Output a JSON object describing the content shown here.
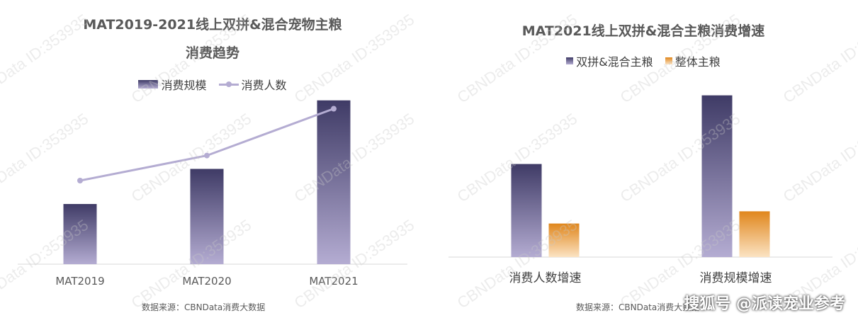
{
  "chart_data": [
    {
      "type": "bar+line",
      "title_line1": "MAT2019-2021线上双拼&混合宠物主粮",
      "title_line2": "消费趋势",
      "categories": [
        "MAT2019",
        "MAT2020",
        "MAT2021"
      ],
      "series": [
        {
          "name": "消费规模",
          "kind": "bar",
          "values": [
            36,
            57,
            98
          ]
        },
        {
          "name": "消费人数",
          "kind": "line",
          "values": [
            50,
            65,
            93
          ]
        }
      ],
      "ylim": [
        0,
        100
      ],
      "grid": false,
      "legend": "top-center",
      "colors": {
        "bar_top": "#3f3b66",
        "bar_bottom": "#b4acd2",
        "line": "#b4acd2"
      },
      "source": "数据来源：CBNData消费大数据"
    },
    {
      "type": "bar",
      "title": "MAT2021线上双拼&混合主粮消费增速",
      "categories": [
        "消费人数增速",
        "消费规模增速"
      ],
      "series": [
        {
          "name": "双拼&混合主粮",
          "values": [
            61,
            106
          ]
        },
        {
          "name": "整体主粮",
          "values": [
            22,
            30
          ]
        }
      ],
      "ylim": [
        0,
        110
      ],
      "grid": false,
      "legend": "top-center",
      "colors": {
        "dark_top": "#3f3b66",
        "dark_bottom": "#b4acd2",
        "orange_top": "#e0861c",
        "orange_bottom": "#fbe3c3"
      },
      "source": "数据来源：CBNData消费大数据"
    }
  ],
  "watermark_text": "CBNData ID:353935",
  "brand_text": "搜狐号 @派读宠业参考"
}
